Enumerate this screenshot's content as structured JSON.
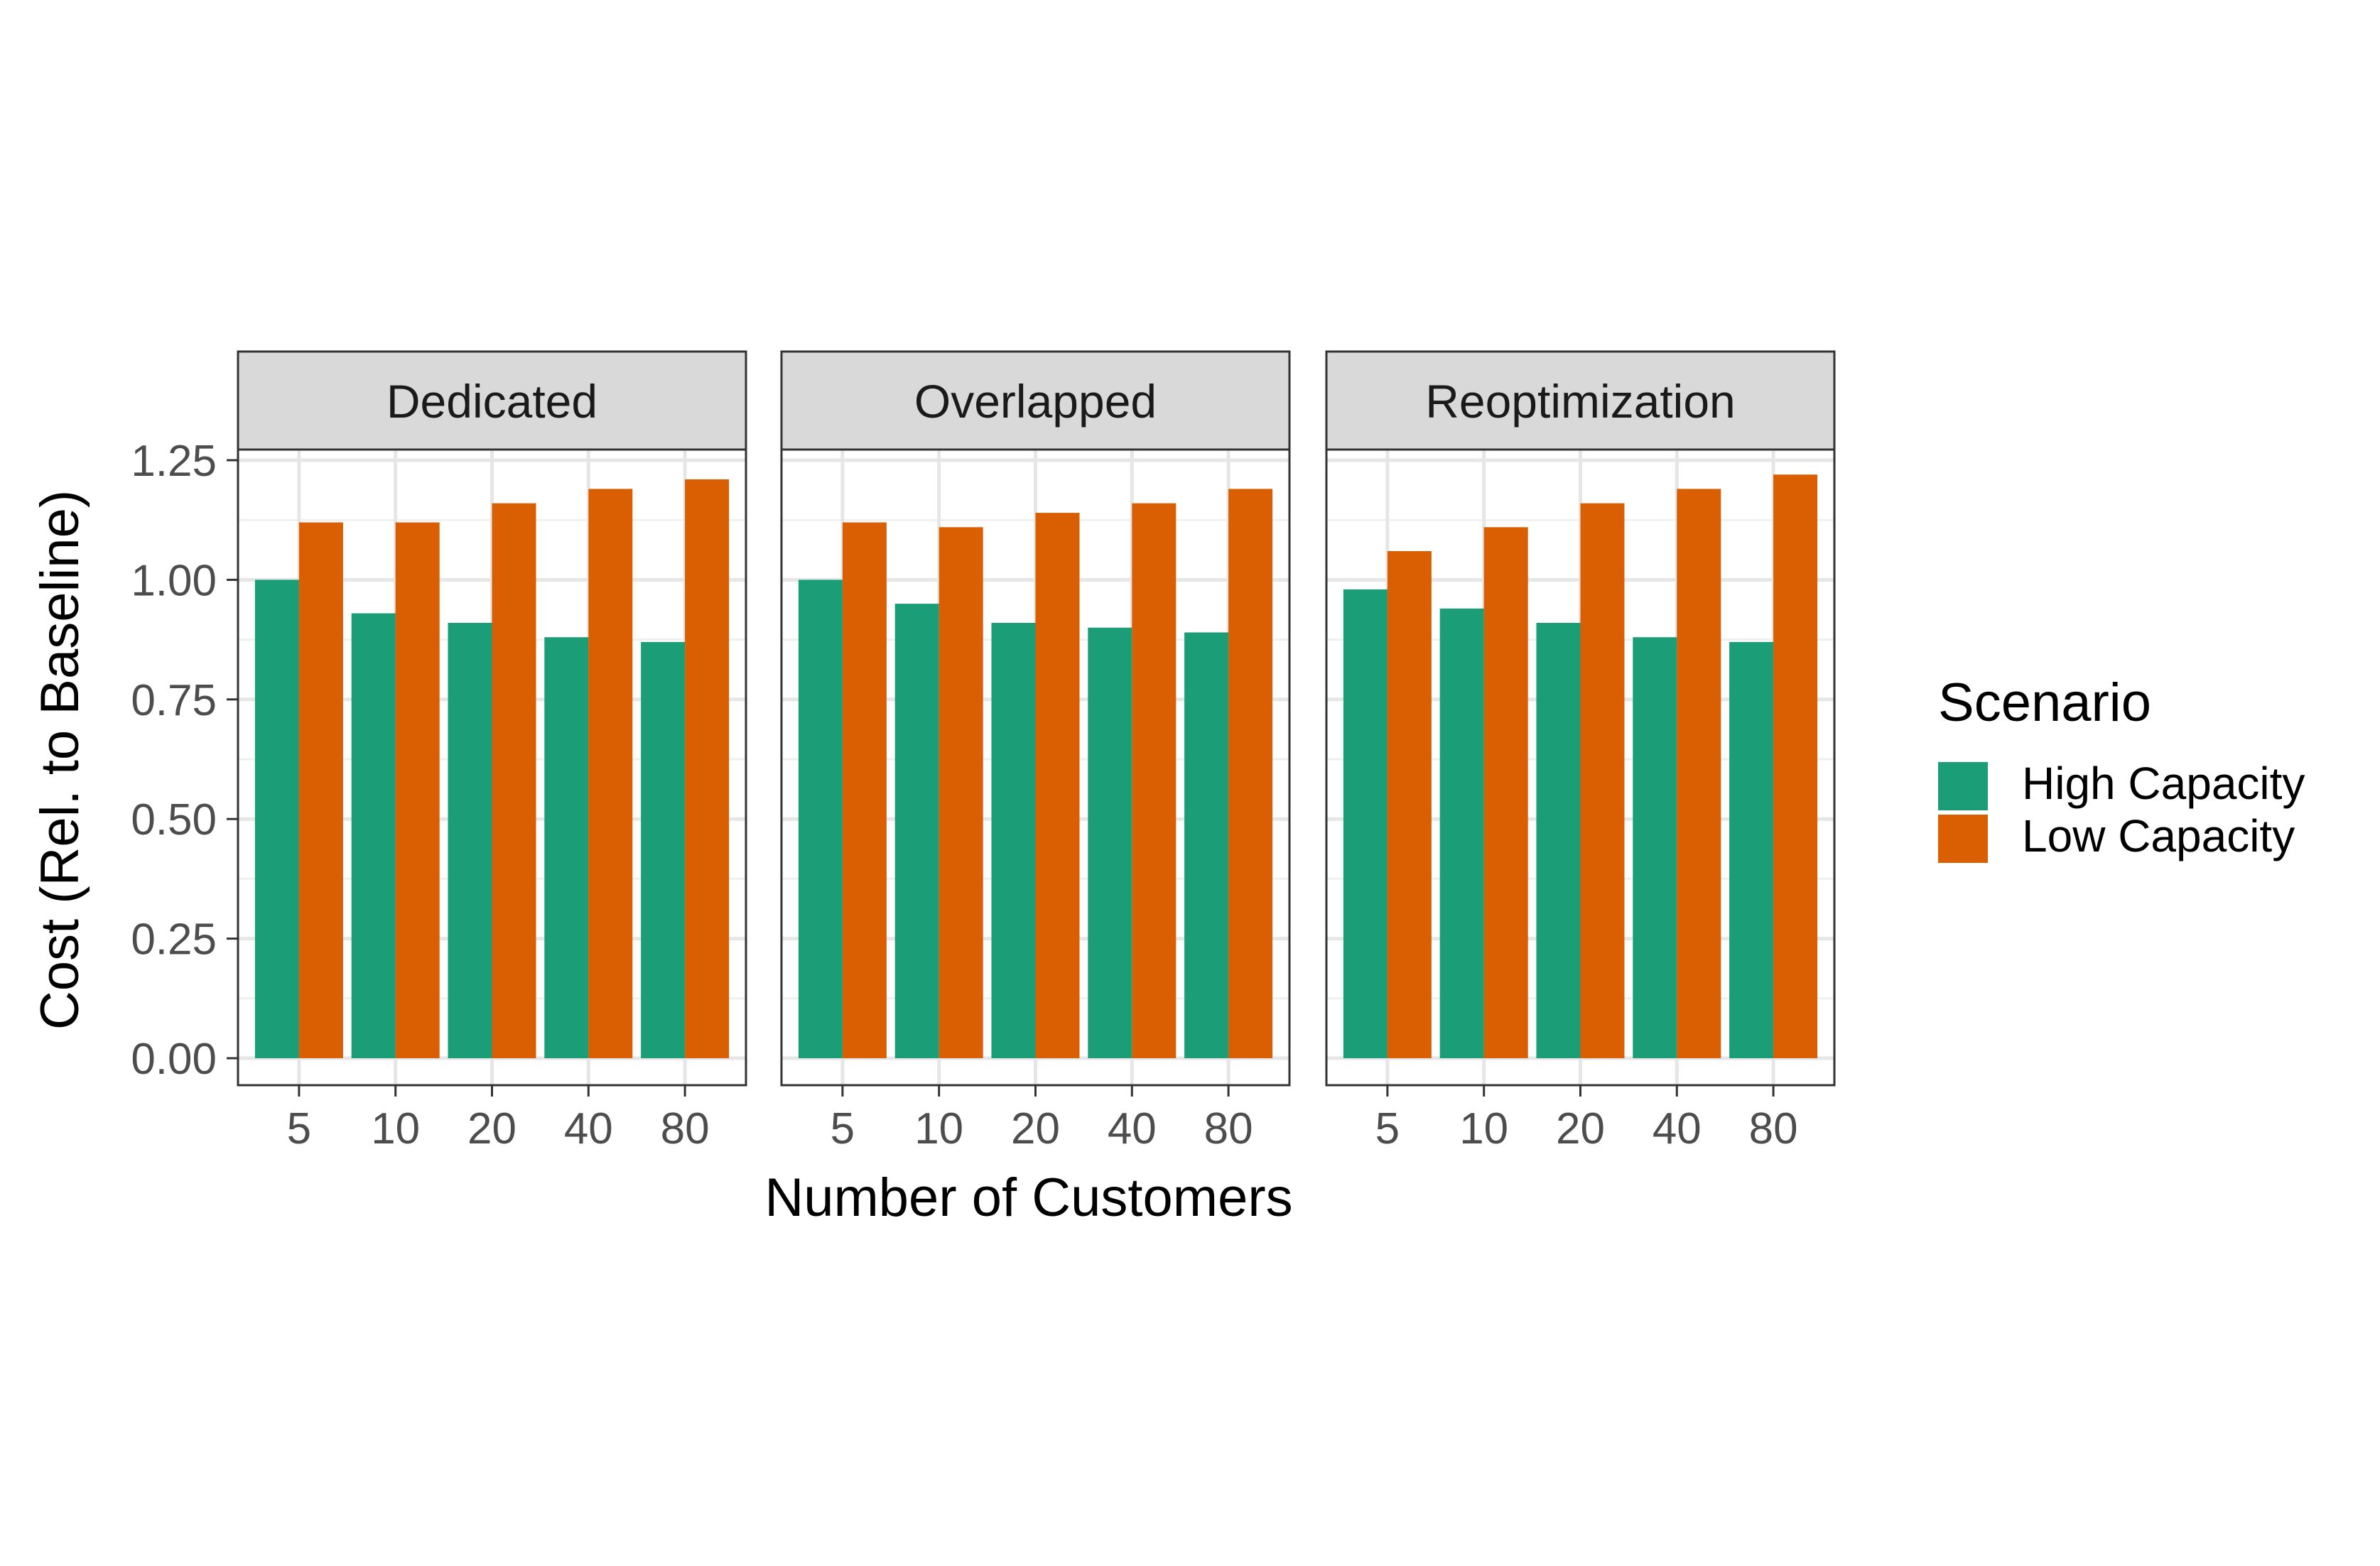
{
  "chart_data": {
    "type": "bar",
    "facets": [
      "Dedicated",
      "Overlapped",
      "Reoptimization"
    ],
    "categories": [
      "5",
      "10",
      "20",
      "40",
      "80"
    ],
    "xlabel": "Number of Customers",
    "ylabel": "Cost (Rel. to Baseline)",
    "ylim": [
      0,
      1.25
    ],
    "yticks": [
      "0.00",
      "0.25",
      "0.50",
      "0.75",
      "1.00",
      "1.25"
    ],
    "grid": true,
    "legend": {
      "title": "Scenario",
      "position": "right",
      "entries": [
        "High Capacity",
        "Low Capacity"
      ]
    },
    "colors": {
      "High Capacity": "#1b9e77",
      "Low Capacity": "#d95f02"
    },
    "panels": [
      {
        "facet": "Dedicated",
        "series": [
          {
            "name": "High Capacity",
            "values": [
              1.0,
              0.93,
              0.91,
              0.88,
              0.87
            ]
          },
          {
            "name": "Low Capacity",
            "values": [
              1.12,
              1.12,
              1.16,
              1.19,
              1.21
            ]
          }
        ]
      },
      {
        "facet": "Overlapped",
        "series": [
          {
            "name": "High Capacity",
            "values": [
              1.0,
              0.95,
              0.91,
              0.9,
              0.89
            ]
          },
          {
            "name": "Low Capacity",
            "values": [
              1.12,
              1.11,
              1.14,
              1.16,
              1.19
            ]
          }
        ]
      },
      {
        "facet": "Reoptimization",
        "series": [
          {
            "name": "High Capacity",
            "values": [
              0.98,
              0.94,
              0.91,
              0.88,
              0.87
            ]
          },
          {
            "name": "Low Capacity",
            "values": [
              1.06,
              1.11,
              1.16,
              1.19,
              1.22
            ]
          }
        ]
      }
    ]
  }
}
